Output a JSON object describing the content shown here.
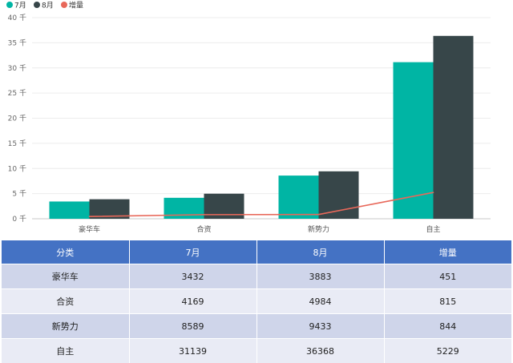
{
  "colors": {
    "july": "#00b5a4",
    "august": "#374649",
    "increase": "#e8685a",
    "table_header_bg": "#4472c4",
    "table_row_odd": "#cfd5ea",
    "table_row_even": "#e9ebf5"
  },
  "chart_data": {
    "type": "bar",
    "categories": [
      "豪华车",
      "合资",
      "新势力",
      "自主"
    ],
    "series": [
      {
        "name": "7月",
        "kind": "bar",
        "color": "#00b5a4",
        "values": [
          3432,
          4169,
          8589,
          31139
        ]
      },
      {
        "name": "8月",
        "kind": "bar",
        "color": "#374649",
        "values": [
          3883,
          4984,
          9433,
          36368
        ]
      },
      {
        "name": "增量",
        "kind": "line",
        "color": "#e8685a",
        "values": [
          451,
          815,
          844,
          5229
        ]
      }
    ],
    "y_ticks": [
      {
        "value": 0,
        "label": "0 千"
      },
      {
        "value": 5000,
        "label": "5 千"
      },
      {
        "value": 10000,
        "label": "10 千"
      },
      {
        "value": 15000,
        "label": "15 千"
      },
      {
        "value": 20000,
        "label": "20 千"
      },
      {
        "value": 25000,
        "label": "25 千"
      },
      {
        "value": 30000,
        "label": "30 千"
      },
      {
        "value": 35000,
        "label": "35 千"
      },
      {
        "value": 40000,
        "label": "40 千"
      }
    ],
    "ylim": [
      0,
      40000
    ],
    "grid": true,
    "legend_position": "top-left",
    "title": "",
    "xlabel": "",
    "ylabel": ""
  },
  "table": {
    "headers": [
      "分类",
      "7月",
      "8月",
      "增量"
    ],
    "rows": [
      [
        "豪华车",
        "3432",
        "3883",
        "451"
      ],
      [
        "合资",
        "4169",
        "4984",
        "815"
      ],
      [
        "新势力",
        "8589",
        "9433",
        "844"
      ],
      [
        "自主",
        "31139",
        "36368",
        "5229"
      ]
    ]
  }
}
